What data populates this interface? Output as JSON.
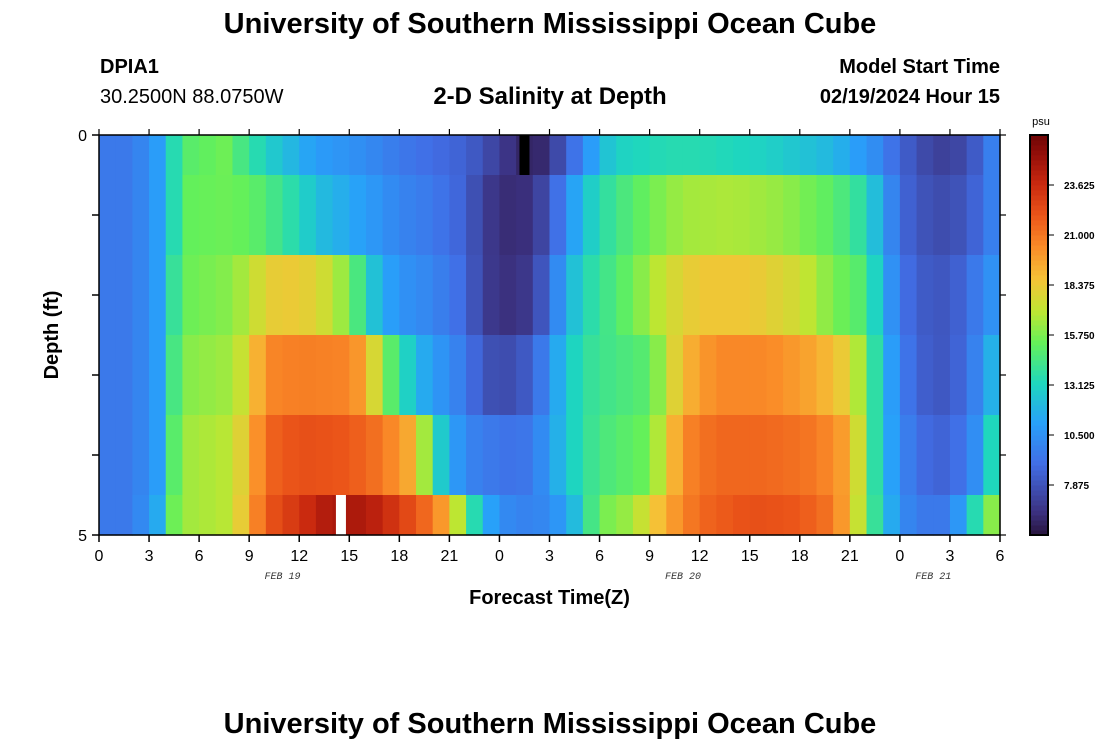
{
  "page": {
    "title": "University of Southern Mississippi Ocean Cube",
    "footer_title": "University of Southern Mississippi Ocean Cube"
  },
  "station": {
    "id": "DPIA1",
    "coords": "30.2500N  88.0750W"
  },
  "model": {
    "start_label": "Model Start Time",
    "start_value": "02/19/2024 Hour 15"
  },
  "chart_data": {
    "type": "heatmap",
    "title": "2-D Salinity at Depth",
    "xlabel": "Forecast Time(Z)",
    "ylabel": "Depth (ft)",
    "x_tick_labels": [
      "0",
      "3",
      "6",
      "9",
      "12",
      "15",
      "18",
      "21",
      "0",
      "3",
      "6",
      "9",
      "12",
      "15",
      "18",
      "21",
      "0",
      "3",
      "6"
    ],
    "date_labels": [
      {
        "label": "FEB 19",
        "at_hour": 11
      },
      {
        "label": "FEB 20",
        "at_hour": 35
      },
      {
        "label": "FEB 21",
        "at_hour": 50
      }
    ],
    "x_range_hours": [
      0,
      54
    ],
    "y_range": [
      0,
      5
    ],
    "y_tick_labels": [
      "0",
      "5"
    ],
    "colorbar": {
      "unit": "psu",
      "range": [
        5.25,
        26.25
      ],
      "tick_values": [
        7.875,
        10.5,
        13.125,
        15.75,
        18.375,
        21.0,
        23.625
      ],
      "tick_labels": [
        "7.875",
        "10.500",
        "13.125",
        "15.750",
        "18.375",
        "21.000",
        "23.625"
      ]
    },
    "layers": [
      {
        "depth_range": [
          0,
          0.5
        ],
        "anchors": [
          [
            0,
            9.5
          ],
          [
            2,
            9.5
          ],
          [
            3.5,
            11
          ],
          [
            4.5,
            13.5
          ],
          [
            5.5,
            15
          ],
          [
            7.5,
            15.5
          ],
          [
            8.5,
            14.5
          ],
          [
            10,
            13
          ],
          [
            11.5,
            12
          ],
          [
            13,
            11
          ],
          [
            16,
            10.3
          ],
          [
            18,
            9.5
          ],
          [
            20,
            9
          ],
          [
            22,
            8.5
          ],
          [
            23,
            7.8
          ],
          [
            24,
            7
          ],
          [
            25,
            6.2
          ],
          [
            26,
            5.8
          ],
          [
            27,
            6.5
          ],
          [
            28,
            8.5
          ],
          [
            29,
            10
          ],
          [
            30,
            12
          ],
          [
            31,
            13
          ],
          [
            34,
            13.5
          ],
          [
            36,
            13.5
          ],
          [
            40,
            13
          ],
          [
            44,
            12
          ],
          [
            47,
            10
          ],
          [
            48,
            8.5
          ],
          [
            49,
            8
          ],
          [
            50,
            7
          ],
          [
            52,
            7.5
          ],
          [
            53,
            9
          ],
          [
            54,
            10.5
          ]
        ]
      },
      {
        "depth_range": [
          0.5,
          1.5
        ],
        "anchors": [
          [
            0,
            9.5
          ],
          [
            2,
            9.5
          ],
          [
            3.5,
            11
          ],
          [
            4.5,
            13.5
          ],
          [
            5.5,
            15.3
          ],
          [
            8,
            15.5
          ],
          [
            9.5,
            15
          ],
          [
            11,
            14
          ],
          [
            12,
            13.3
          ],
          [
            13,
            12.3
          ],
          [
            16,
            11
          ],
          [
            18,
            10
          ],
          [
            20,
            9.5
          ],
          [
            22,
            8.5
          ],
          [
            23,
            7
          ],
          [
            24,
            6.4
          ],
          [
            25,
            6.2
          ],
          [
            26,
            6.6
          ],
          [
            27,
            8
          ],
          [
            28,
            10.3
          ],
          [
            29,
            12.3
          ],
          [
            30,
            13.5
          ],
          [
            31,
            14.3
          ],
          [
            33,
            15.5
          ],
          [
            35,
            16.5
          ],
          [
            38,
            16.7
          ],
          [
            41,
            16.2
          ],
          [
            44,
            15
          ],
          [
            46,
            13.5
          ],
          [
            47,
            11
          ],
          [
            48,
            9
          ],
          [
            49,
            8
          ],
          [
            51,
            7.5
          ],
          [
            53,
            9
          ],
          [
            54,
            10.5
          ]
        ]
      },
      {
        "depth_range": [
          1.5,
          2.5
        ],
        "anchors": [
          [
            0,
            9.5
          ],
          [
            2,
            9.5
          ],
          [
            3.5,
            11
          ],
          [
            4.5,
            14
          ],
          [
            5.5,
            15.5
          ],
          [
            8,
            16
          ],
          [
            9,
            17
          ],
          [
            10,
            18
          ],
          [
            11,
            18.5
          ],
          [
            13,
            18
          ],
          [
            14,
            17
          ],
          [
            15,
            15.8
          ],
          [
            16,
            13.3
          ],
          [
            17,
            11.5
          ],
          [
            18,
            10.6
          ],
          [
            20,
            10
          ],
          [
            22,
            8.8
          ],
          [
            23,
            7
          ],
          [
            24,
            6.5
          ],
          [
            25,
            6.4
          ],
          [
            26,
            7
          ],
          [
            27,
            9
          ],
          [
            28,
            11.5
          ],
          [
            29,
            13.3
          ],
          [
            30,
            14
          ],
          [
            32,
            15.5
          ],
          [
            34,
            17.5
          ],
          [
            36,
            18.5
          ],
          [
            39,
            18.5
          ],
          [
            42,
            17.5
          ],
          [
            44,
            15.7
          ],
          [
            46,
            14.7
          ],
          [
            47,
            11.5
          ],
          [
            48,
            9.5
          ],
          [
            49,
            8.3
          ],
          [
            51,
            8
          ],
          [
            53,
            10
          ],
          [
            54,
            11
          ]
        ]
      },
      {
        "depth_range": [
          2.5,
          3.5
        ],
        "anchors": [
          [
            0,
            9.5
          ],
          [
            2,
            9.5
          ],
          [
            3.5,
            11
          ],
          [
            4.5,
            14.5
          ],
          [
            5.5,
            16
          ],
          [
            8,
            16.5
          ],
          [
            9,
            18
          ],
          [
            10,
            20.5
          ],
          [
            12,
            20.8
          ],
          [
            15,
            20.6
          ],
          [
            16,
            19.5
          ],
          [
            17,
            16
          ],
          [
            18,
            14
          ],
          [
            19,
            12
          ],
          [
            20,
            11
          ],
          [
            22,
            9.5
          ],
          [
            23,
            8
          ],
          [
            24,
            7.5
          ],
          [
            25,
            7.8
          ],
          [
            26,
            8.5
          ],
          [
            27,
            10.5
          ],
          [
            28,
            12.5
          ],
          [
            29,
            13.8
          ],
          [
            30,
            14.2
          ],
          [
            33,
            15
          ],
          [
            35,
            19
          ],
          [
            37,
            20.5
          ],
          [
            40,
            20.5
          ],
          [
            43,
            19.5
          ],
          [
            45,
            18
          ],
          [
            46,
            15.5
          ],
          [
            47,
            12
          ],
          [
            48,
            10
          ],
          [
            49,
            8.5
          ],
          [
            51,
            8
          ],
          [
            53,
            10.5
          ],
          [
            54,
            13
          ]
        ]
      },
      {
        "depth_range": [
          3.5,
          4.5
        ],
        "anchors": [
          [
            0,
            9.5
          ],
          [
            2,
            9.5
          ],
          [
            3.5,
            11
          ],
          [
            4.5,
            15
          ],
          [
            5.5,
            16.5
          ],
          [
            8,
            17
          ],
          [
            9,
            19
          ],
          [
            10,
            21.5
          ],
          [
            12,
            22.3
          ],
          [
            15,
            22
          ],
          [
            17,
            21
          ],
          [
            19,
            19
          ],
          [
            20,
            14
          ],
          [
            21,
            11.5
          ],
          [
            22,
            10
          ],
          [
            24,
            9.3
          ],
          [
            25,
            9.2
          ],
          [
            26,
            9.5
          ],
          [
            27,
            11
          ],
          [
            28,
            12.5
          ],
          [
            29,
            13.8
          ],
          [
            30,
            14.5
          ],
          [
            33,
            15.5
          ],
          [
            35,
            20.5
          ],
          [
            37,
            21.5
          ],
          [
            40,
            21.5
          ],
          [
            43,
            21
          ],
          [
            45,
            19.5
          ],
          [
            46,
            15.5
          ],
          [
            47,
            12
          ],
          [
            48,
            10.3
          ],
          [
            49,
            9
          ],
          [
            51,
            8.5
          ],
          [
            53,
            11
          ],
          [
            54,
            15.5
          ]
        ]
      },
      {
        "depth_range": [
          4.5,
          5.0
        ],
        "anchors": [
          [
            0,
            9.5
          ],
          [
            2,
            9.5
          ],
          [
            3.5,
            11.5
          ],
          [
            4.5,
            15.5
          ],
          [
            5.5,
            16.5
          ],
          [
            8,
            17
          ],
          [
            9,
            19.5
          ],
          [
            10,
            22
          ],
          [
            12,
            23.3
          ],
          [
            14,
            24.7
          ],
          [
            16,
            24.5
          ],
          [
            18,
            23
          ],
          [
            20,
            21
          ],
          [
            21,
            19
          ],
          [
            22,
            15
          ],
          [
            23,
            12
          ],
          [
            24,
            10.3
          ],
          [
            26,
            9.8
          ],
          [
            28,
            11
          ],
          [
            29,
            13.3
          ],
          [
            30,
            15.5
          ],
          [
            32,
            16.5
          ],
          [
            34,
            19.5
          ],
          [
            36,
            21.5
          ],
          [
            39,
            22.3
          ],
          [
            42,
            22
          ],
          [
            44,
            21
          ],
          [
            45,
            19
          ],
          [
            46,
            15.5
          ],
          [
            47,
            12.5
          ],
          [
            48,
            10.5
          ],
          [
            49,
            9.5
          ],
          [
            51,
            9.5
          ],
          [
            52,
            12
          ],
          [
            53,
            15
          ],
          [
            54,
            17
          ]
        ]
      }
    ],
    "missing_cells": [
      {
        "hour": 25.5,
        "depth_range": [
          0,
          0.5
        ],
        "color": "#000000"
      },
      {
        "hour": 14.5,
        "depth_range": [
          4.5,
          5.0
        ],
        "color": "#ffffff"
      }
    ]
  }
}
